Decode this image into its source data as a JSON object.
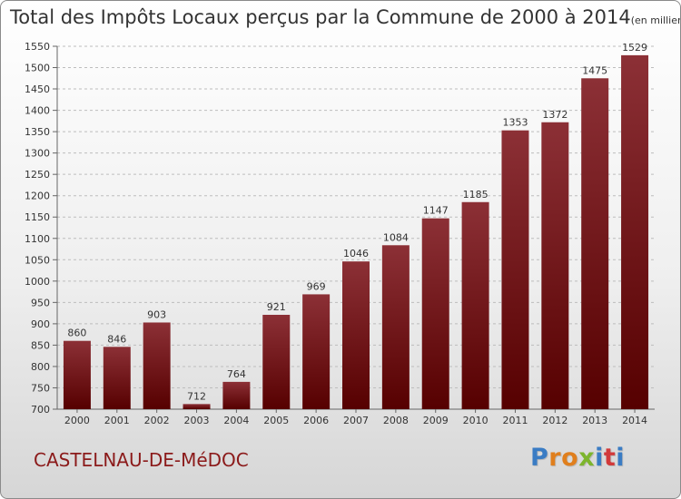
{
  "header": {
    "title": "Total des Impôts Locaux perçus par la Commune de 2000 à 2014",
    "unit": "(en milliers d'€)"
  },
  "footer": {
    "commune": "CASTELNAU-DE-MéDOC",
    "logo_letters": [
      "P",
      "r",
      "o",
      "x",
      "i",
      "t",
      "i"
    ],
    "logo_colors": [
      "#3a7cc4",
      "#e07f1d",
      "#e07f1d",
      "#7db52d",
      "#3a7cc4",
      "#d23a3a",
      "#3a7cc4"
    ]
  },
  "colors": {
    "bar_top": "#8c3036",
    "bar_bottom": "#560000",
    "grid": "#bdbdbd",
    "text": "#333333"
  },
  "chart_data": {
    "type": "bar",
    "categories": [
      "2000",
      "2001",
      "2002",
      "2003",
      "2004",
      "2005",
      "2006",
      "2007",
      "2008",
      "2009",
      "2010",
      "2011",
      "2012",
      "2013",
      "2014"
    ],
    "values": [
      860,
      846,
      903,
      712,
      764,
      921,
      969,
      1046,
      1084,
      1147,
      1185,
      1353,
      1372,
      1475,
      1529
    ],
    "title": "Total des Impôts Locaux perçus par la Commune de 2000 à 2014",
    "ylim": [
      700,
      1550
    ],
    "yticks": [
      700,
      750,
      800,
      850,
      900,
      950,
      1000,
      1050,
      1100,
      1150,
      1200,
      1250,
      1300,
      1350,
      1400,
      1450,
      1500,
      1550
    ],
    "grid": true,
    "data_labels": true
  }
}
